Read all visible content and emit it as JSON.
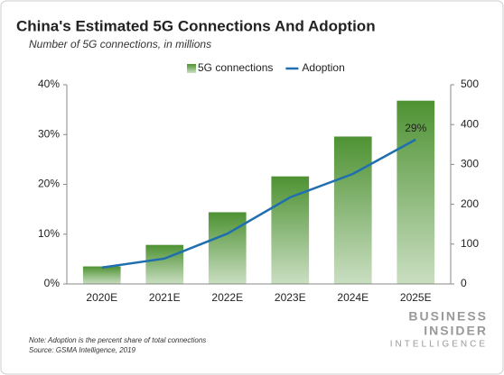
{
  "chart_data": {
    "type": "combo",
    "title": "China's Estimated 5G Connections And Adoption",
    "subtitle": "Number of 5G connections, in millions",
    "categories": [
      "2020E",
      "2021E",
      "2022E",
      "2023E",
      "2024E",
      "2025E"
    ],
    "series": [
      {
        "name": "5G connections",
        "type": "bar",
        "axis": "y2",
        "color": "#4e9233",
        "values": [
          44,
          98,
          180,
          270,
          370,
          460
        ]
      },
      {
        "name": "Adoption",
        "type": "line",
        "axis": "y",
        "color": "#1f6fb0",
        "values": [
          3.3,
          5.1,
          10.1,
          17.4,
          22.1,
          29
        ],
        "value_labels": [
          null,
          null,
          null,
          null,
          null,
          "29%"
        ]
      }
    ],
    "ylim": [
      0,
      40
    ],
    "yticks": [
      {
        "value": 0,
        "label": "0%"
      },
      {
        "value": 10,
        "label": "10%"
      },
      {
        "value": 20,
        "label": "20%"
      },
      {
        "value": 30,
        "label": "30%"
      },
      {
        "value": 40,
        "label": "40%"
      }
    ],
    "y2lim": [
      0,
      500
    ],
    "y2ticks": [
      0,
      100,
      200,
      300,
      400,
      500
    ],
    "legend": "top",
    "note": "Note: Adoption is the percent share of total connections",
    "source": "Source: GSMA Intelligence, 2019",
    "logo": [
      "BUSINESS",
      "INSIDER",
      "INTELLIGENCE"
    ]
  }
}
